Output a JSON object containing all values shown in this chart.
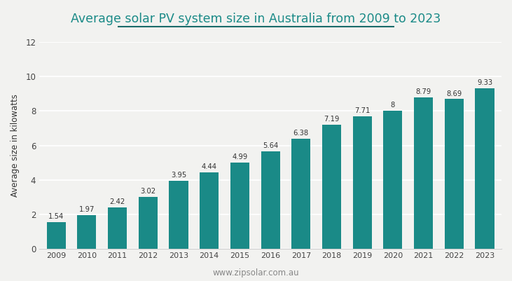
{
  "title": "Average solar PV system size in Australia from 2009 to 2023",
  "ylabel": "Average size in kilowatts",
  "watermark": "www.zipsolar.com.au",
  "years": [
    2009,
    2010,
    2011,
    2012,
    2013,
    2014,
    2015,
    2016,
    2017,
    2018,
    2019,
    2020,
    2021,
    2022,
    2023
  ],
  "values": [
    1.54,
    1.97,
    2.42,
    3.02,
    3.95,
    4.44,
    4.99,
    5.64,
    6.38,
    7.19,
    7.71,
    8.0,
    8.79,
    8.69,
    9.33
  ],
  "bar_color": "#1a8a87",
  "background_color": "#f2f2f0",
  "title_color": "#1a8a87",
  "label_color": "#333333",
  "watermark_color": "#888888",
  "grid_color": "#ffffff",
  "spine_color": "#cccccc",
  "ylim": [
    0,
    12
  ],
  "yticks": [
    0,
    2,
    4,
    6,
    8,
    10,
    12
  ],
  "title_fontsize": 12.5,
  "ylabel_fontsize": 8.5,
  "bar_label_fontsize": 7.2,
  "watermark_fontsize": 8.5,
  "xtick_fontsize": 8.0,
  "ytick_fontsize": 8.5,
  "title_underline_color": "#1a6b6a",
  "bar_width": 0.62
}
